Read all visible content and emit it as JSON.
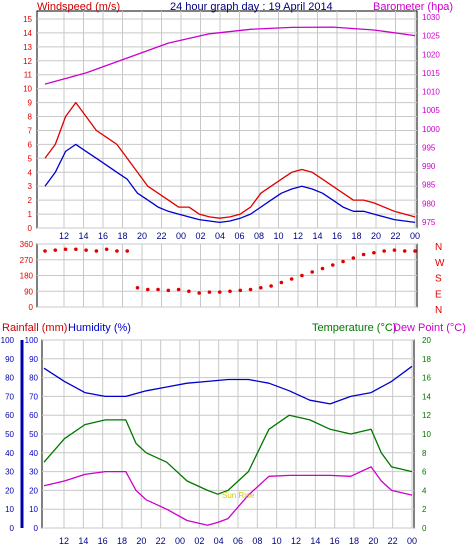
{
  "page": {
    "title": "24 hour graph day : 19 April 2014"
  },
  "colors": {
    "wind": "#e00000",
    "gust_blue": "#0000cc",
    "baro": "#cc00cc",
    "dir": "#e00000",
    "rain": "#cc0000",
    "humidity": "#0000cc",
    "temperature": "#007700",
    "dewpoint": "#cc00cc",
    "axis_blue": "#0000aa",
    "grid": "#c8c8c8",
    "sun": "#cccc00"
  },
  "chart_data": [
    {
      "id": "wind-baro",
      "type": "line",
      "title": "24 hour graph day : 19 April 2014",
      "left_label": "Windspeed (m/s)",
      "right_label": "Barometer (hpa)",
      "x_ticks": [
        "12",
        "14",
        "16",
        "18",
        "20",
        "22",
        "00",
        "02",
        "04",
        "06",
        "08",
        "10",
        "12",
        "14",
        "16",
        "18",
        "20",
        "22",
        "00"
      ],
      "ylim_left": [
        0,
        15
      ],
      "y_ticks_left": [
        "0",
        "1",
        "2",
        "3",
        "4",
        "5",
        "6",
        "7",
        "8",
        "9",
        "10",
        "11",
        "12",
        "13",
        "14",
        "15"
      ],
      "ylim_right": [
        975,
        1030
      ],
      "y_ticks_right": [
        "975",
        "980",
        "985",
        "990",
        "995",
        "1000",
        "1005",
        "1010",
        "1015",
        "1020",
        "1025",
        "1030"
      ],
      "series": [
        {
          "name": "Windspeed (m/s)",
          "color": "#e00000",
          "x": [
            0,
            1,
            2,
            3,
            4,
            5,
            6,
            7,
            8,
            9,
            10,
            11,
            12,
            13,
            14,
            15,
            16,
            17,
            18,
            19,
            20,
            21,
            22,
            23,
            24,
            25,
            26,
            27,
            28,
            29,
            30,
            31,
            32,
            33,
            34,
            35,
            36
          ],
          "y": [
            5,
            6,
            8,
            9,
            8,
            7,
            6.5,
            6,
            5,
            4,
            3,
            2.5,
            2,
            1.5,
            1.5,
            1,
            0.8,
            0.7,
            0.8,
            1,
            1.5,
            2.5,
            3,
            3.5,
            4,
            4.2,
            4,
            3.5,
            3,
            2.5,
            2,
            2,
            1.8,
            1.5,
            1.2,
            1,
            0.8
          ]
        },
        {
          "name": "Gust (m/s)",
          "color": "#0000cc",
          "x": [
            0,
            1,
            2,
            3,
            4,
            5,
            6,
            7,
            8,
            9,
            10,
            11,
            12,
            13,
            14,
            15,
            16,
            17,
            18,
            19,
            20,
            21,
            22,
            23,
            24,
            25,
            26,
            27,
            28,
            29,
            30,
            31,
            32,
            33,
            34,
            35,
            36
          ],
          "y": [
            3,
            4,
            5.5,
            6,
            5.5,
            5,
            4.5,
            4,
            3.5,
            2.5,
            2,
            1.5,
            1.2,
            1,
            0.8,
            0.6,
            0.5,
            0.4,
            0.5,
            0.7,
            1,
            1.5,
            2,
            2.5,
            2.8,
            3,
            2.8,
            2.5,
            2,
            1.5,
            1.2,
            1.2,
            1,
            0.8,
            0.6,
            0.5,
            0.4
          ]
        },
        {
          "name": "Barometer (hpa)",
          "axis": "right",
          "color": "#cc00cc",
          "x": [
            0,
            4,
            8,
            12,
            16,
            20,
            24,
            28,
            32,
            36
          ],
          "y": [
            1012,
            1015,
            1019,
            1023,
            1025.5,
            1026.7,
            1027.2,
            1027.3,
            1026.5,
            1025
          ]
        }
      ]
    },
    {
      "id": "wind-direction",
      "type": "scatter",
      "y_ticks_left": [
        "0",
        "90",
        "180",
        "270",
        "360"
      ],
      "ylim": [
        0,
        360
      ],
      "right_labels": [
        "N",
        "W",
        "S",
        "E",
        "N"
      ],
      "series": [
        {
          "name": "Wind direction",
          "color": "#e00000",
          "x": [
            0,
            1,
            2,
            3,
            4,
            5,
            6,
            7,
            8,
            9,
            10,
            11,
            12,
            13,
            14,
            15,
            16,
            17,
            18,
            19,
            20,
            21,
            22,
            23,
            24,
            25,
            26,
            27,
            28,
            29,
            30,
            31,
            32,
            33,
            34,
            35,
            36
          ],
          "y": [
            320,
            325,
            330,
            330,
            325,
            320,
            330,
            320,
            320,
            110,
            100,
            100,
            95,
            100,
            90,
            80,
            85,
            85,
            90,
            95,
            100,
            110,
            120,
            140,
            160,
            180,
            200,
            220,
            240,
            260,
            280,
            300,
            310,
            320,
            325,
            320,
            320
          ]
        }
      ]
    },
    {
      "id": "temp-humidity",
      "type": "line",
      "left_label_rain": "Rainfall (mm)",
      "left_label_humidity": "Humidity (%)",
      "right_label_temp": "Temperature (°C)",
      "right_label_dew": "Dew Point (°C)",
      "annotation": "Sun Rise",
      "y_ticks_rain": [
        "0",
        "10",
        "20",
        "30",
        "40",
        "50",
        "60",
        "70",
        "80",
        "90",
        "100"
      ],
      "y_ticks_humidity": [
        "0",
        "10",
        "20",
        "30",
        "40",
        "50",
        "60",
        "70",
        "80",
        "90",
        "100"
      ],
      "ylim_humidity": [
        0,
        100
      ],
      "y_ticks_right": [
        "0",
        "2",
        "4",
        "6",
        "8",
        "10",
        "12",
        "14",
        "16",
        "18",
        "20"
      ],
      "ylim_right": [
        0,
        20
      ],
      "x_ticks": [
        "12",
        "14",
        "16",
        "18",
        "20",
        "22",
        "00",
        "02",
        "04",
        "06",
        "08",
        "10",
        "12",
        "14",
        "16",
        "18",
        "20",
        "22",
        "00"
      ],
      "series": [
        {
          "name": "Humidity (%)",
          "color": "#0000cc",
          "x": [
            0,
            2,
            4,
            6,
            8,
            10,
            12,
            14,
            16,
            18,
            20,
            22,
            24,
            26,
            28,
            30,
            32,
            34,
            36
          ],
          "y": [
            85,
            78,
            72,
            70,
            70,
            73,
            75,
            77,
            78,
            79,
            79,
            77,
            73,
            68,
            66,
            70,
            72,
            78,
            86
          ]
        },
        {
          "name": "Temperature (°C)",
          "axis": "right",
          "color": "#007700",
          "x": [
            0,
            2,
            4,
            6,
            8,
            9,
            10,
            12,
            14,
            16,
            17,
            18,
            20,
            22,
            24,
            26,
            28,
            30,
            32,
            33,
            34,
            36
          ],
          "y": [
            7,
            9.5,
            11,
            11.5,
            11.5,
            9,
            8,
            7,
            5,
            4,
            3.6,
            4,
            6,
            10.5,
            12,
            11.5,
            10.5,
            10,
            10.5,
            8,
            6.5,
            6
          ]
        },
        {
          "name": "Dew Point (°C)",
          "axis": "right",
          "color": "#cc00cc",
          "x": [
            0,
            2,
            4,
            6,
            8,
            9,
            10,
            12,
            14,
            16,
            17,
            18,
            20,
            22,
            24,
            26,
            28,
            30,
            32,
            33,
            34,
            36
          ],
          "y": [
            4.5,
            5,
            5.7,
            6,
            6,
            4,
            3,
            2,
            0.8,
            0.3,
            0.6,
            1,
            3.5,
            5.5,
            5.6,
            5.6,
            5.6,
            5.5,
            6.5,
            5,
            4,
            3.5
          ]
        }
      ]
    }
  ]
}
